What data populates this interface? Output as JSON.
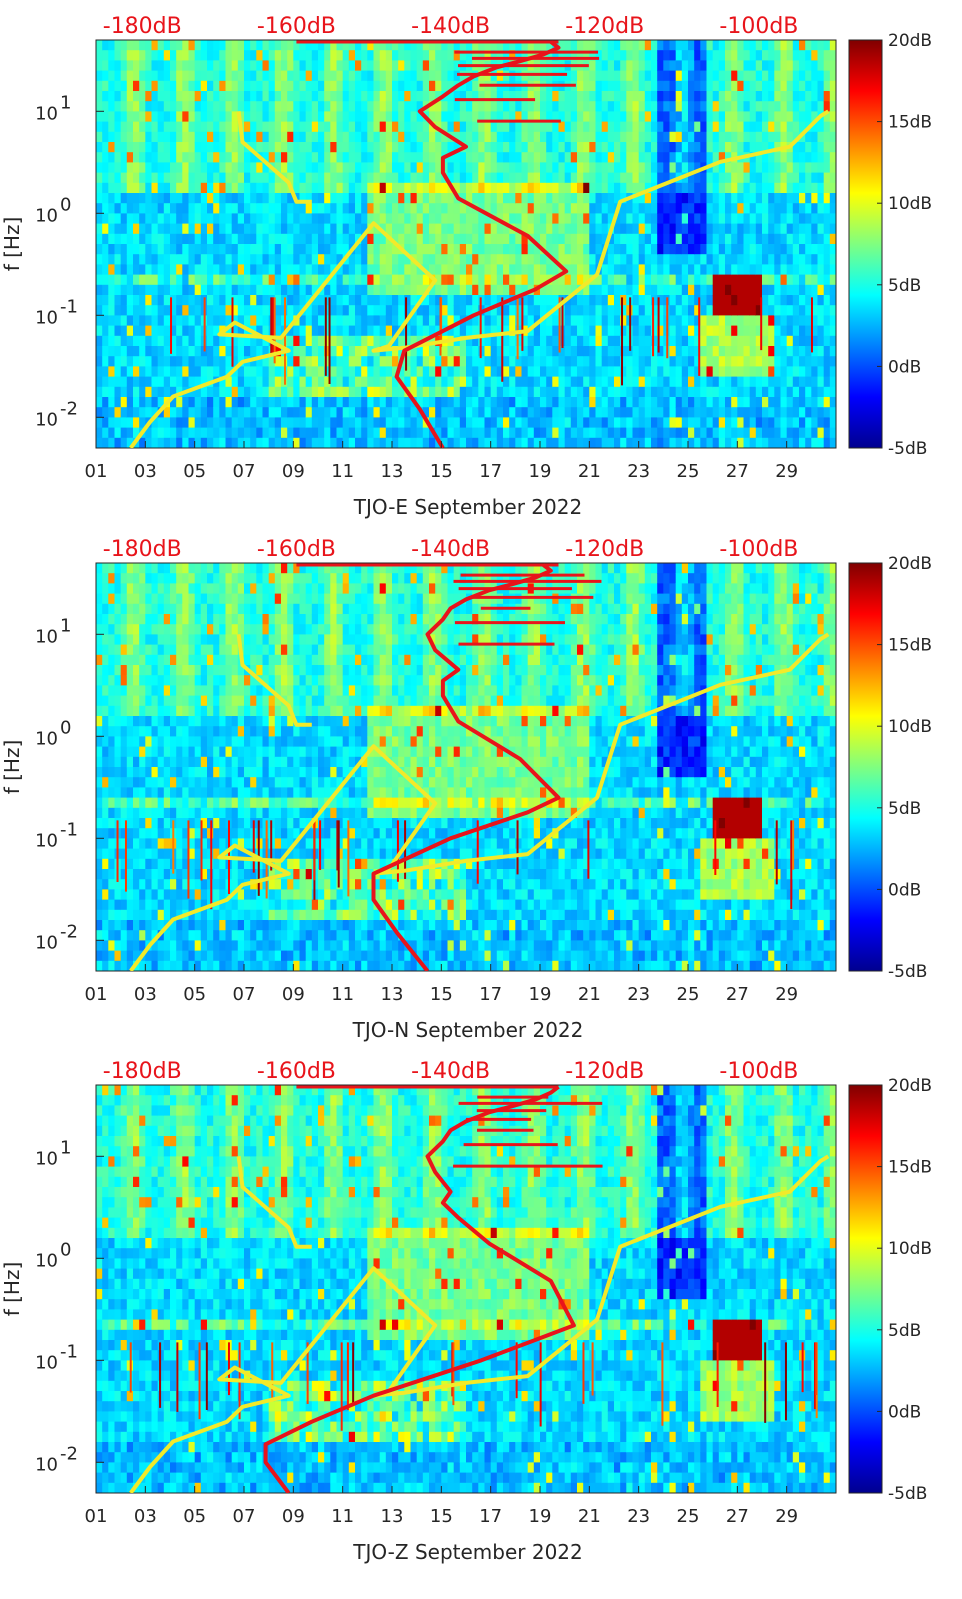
{
  "chart_data": [
    {
      "type": "heatmap",
      "title": "",
      "xlabel": "TJO-E September 2022",
      "ylabel": "f [Hz]",
      "x_ticks": [
        "01",
        "03",
        "05",
        "07",
        "09",
        "11",
        "13",
        "15",
        "17",
        "19",
        "21",
        "23",
        "25",
        "27",
        "29"
      ],
      "x_tick_values": [
        1,
        3,
        5,
        7,
        9,
        11,
        13,
        15,
        17,
        19,
        21,
        23,
        25,
        27,
        29
      ],
      "xlim": [
        1,
        31
      ],
      "y_scale": "log",
      "ylim": [
        0.005,
        50
      ],
      "y_ticks": [
        {
          "base": "10",
          "exp": "-2",
          "value": 0.01
        },
        {
          "base": "10",
          "exp": "-1",
          "value": 0.1
        },
        {
          "base": "10",
          "exp": "0",
          "value": 1
        },
        {
          "base": "10",
          "exp": "1",
          "value": 10
        }
      ],
      "top_axis_labels": [
        "-180dB",
        "-160dB",
        "-140dB",
        "-120dB",
        "-100dB"
      ],
      "top_axis_values": [
        -180,
        -160,
        -140,
        -120,
        -100
      ],
      "top_axis_range": [
        -186,
        -90
      ],
      "colorbar": {
        "labels": [
          "20dB",
          "15dB",
          "10dB",
          "5dB",
          "0dB",
          "-5dB"
        ],
        "values": [
          20,
          15,
          10,
          5,
          0,
          -5
        ],
        "range": [
          -5,
          20
        ],
        "colormap": "jet"
      },
      "series": [
        {
          "color": "#f2ea2a",
          "top_db": [
            -181.5,
            -179,
            -176,
            -169,
            -167,
            -161,
            -168,
            -170,
            -162,
            -150,
            -142,
            -148,
            -150,
            -146,
            -138,
            -130,
            -121,
            -118,
            -105,
            -96,
            -92,
            -91
          ],
          "freq_hz": [
            0.005,
            0.009,
            0.016,
            0.025,
            0.035,
            0.045,
            0.085,
            0.065,
            0.06,
            0.8,
            0.22,
            0.05,
            0.045,
            0.048,
            0.06,
            0.07,
            0.25,
            1.3,
            3.2,
            4.5,
            9,
            10
          ]
        },
        {
          "color": "#e8141b",
          "top_db": [
            -141,
            -144,
            -147,
            -146,
            -137,
            -129,
            -125,
            -130,
            -139,
            -141,
            -141,
            -138,
            -142,
            -144,
            -141,
            -139,
            -137,
            -134,
            -131,
            -128,
            -126,
            -127
          ],
          "freq_hz": [
            0.005,
            0.012,
            0.025,
            0.045,
            0.1,
            0.18,
            0.27,
            0.6,
            1.4,
            2.5,
            3.5,
            4.5,
            7,
            10,
            14,
            18,
            22,
            27,
            31,
            36,
            42,
            48
          ]
        },
        {
          "color": "#f2ea2a",
          "top_db": [
            -167.5,
            -167,
            -161,
            -160,
            -158
          ],
          "freq_hz": [
            10,
            5,
            2,
            1.3,
            1.3
          ]
        }
      ]
    },
    {
      "type": "heatmap",
      "title": "",
      "xlabel": "TJO-N September 2022",
      "ylabel": "f [Hz]",
      "x_ticks": [
        "01",
        "03",
        "05",
        "07",
        "09",
        "11",
        "13",
        "15",
        "17",
        "19",
        "21",
        "23",
        "25",
        "27",
        "29"
      ],
      "x_tick_values": [
        1,
        3,
        5,
        7,
        9,
        11,
        13,
        15,
        17,
        19,
        21,
        23,
        25,
        27,
        29
      ],
      "xlim": [
        1,
        31
      ],
      "y_scale": "log",
      "ylim": [
        0.005,
        50
      ],
      "y_ticks": [
        {
          "base": "10",
          "exp": "-2",
          "value": 0.01
        },
        {
          "base": "10",
          "exp": "-1",
          "value": 0.1
        },
        {
          "base": "10",
          "exp": "0",
          "value": 1
        },
        {
          "base": "10",
          "exp": "1",
          "value": 10
        }
      ],
      "top_axis_labels": [
        "-180dB",
        "-160dB",
        "-140dB",
        "-120dB",
        "-100dB"
      ],
      "top_axis_values": [
        -180,
        -160,
        -140,
        -120,
        -100
      ],
      "top_axis_range": [
        -186,
        -90
      ],
      "colorbar": {
        "labels": [
          "20dB",
          "15dB",
          "10dB",
          "5dB",
          "0dB",
          "-5dB"
        ],
        "values": [
          20,
          15,
          10,
          5,
          0,
          -5
        ],
        "range": [
          -5,
          20
        ],
        "colormap": "jet"
      },
      "series": [
        {
          "color": "#f2ea2a",
          "top_db": [
            -181.5,
            -179,
            -176,
            -169,
            -167,
            -161,
            -168,
            -170,
            -162,
            -150,
            -142,
            -148,
            -150,
            -146,
            -138,
            -130,
            -121,
            -118,
            -105,
            -96,
            -92,
            -91
          ],
          "freq_hz": [
            0.005,
            0.009,
            0.016,
            0.025,
            0.035,
            0.045,
            0.085,
            0.065,
            0.06,
            0.8,
            0.22,
            0.05,
            0.045,
            0.048,
            0.06,
            0.07,
            0.25,
            1.3,
            3.2,
            4.5,
            9,
            10
          ]
        },
        {
          "color": "#e8141b",
          "top_db": [
            -143,
            -147,
            -150,
            -150,
            -140,
            -130,
            -126,
            -131,
            -139,
            -141,
            -141,
            -139,
            -142,
            -143,
            -141,
            -140,
            -138,
            -135,
            -132,
            -129,
            -127,
            -128
          ],
          "freq_hz": [
            0.005,
            0.012,
            0.025,
            0.045,
            0.1,
            0.18,
            0.25,
            0.6,
            1.4,
            2.5,
            3.5,
            4.5,
            7,
            10,
            14,
            18,
            22,
            27,
            31,
            36,
            42,
            48
          ]
        },
        {
          "color": "#f2ea2a",
          "top_db": [
            -167.5,
            -167,
            -161,
            -160,
            -158
          ],
          "freq_hz": [
            10,
            5,
            2,
            1.3,
            1.3
          ]
        }
      ]
    },
    {
      "type": "heatmap",
      "title": "",
      "xlabel": "TJO-Z September 2022",
      "ylabel": "f [Hz]",
      "x_ticks": [
        "01",
        "03",
        "05",
        "07",
        "09",
        "11",
        "13",
        "15",
        "17",
        "19",
        "21",
        "23",
        "25",
        "27",
        "29"
      ],
      "x_tick_values": [
        1,
        3,
        5,
        7,
        9,
        11,
        13,
        15,
        17,
        19,
        21,
        23,
        25,
        27,
        29
      ],
      "xlim": [
        1,
        31
      ],
      "y_scale": "log",
      "ylim": [
        0.005,
        50
      ],
      "y_ticks": [
        {
          "base": "10",
          "exp": "-2",
          "value": 0.01
        },
        {
          "base": "10",
          "exp": "-1",
          "value": 0.1
        },
        {
          "base": "10",
          "exp": "0",
          "value": 1
        },
        {
          "base": "10",
          "exp": "1",
          "value": 10
        }
      ],
      "top_axis_labels": [
        "-180dB",
        "-160dB",
        "-140dB",
        "-120dB",
        "-100dB"
      ],
      "top_axis_values": [
        -180,
        -160,
        -140,
        -120,
        -100
      ],
      "top_axis_range": [
        -186,
        -90
      ],
      "colorbar": {
        "labels": [
          "20dB",
          "15dB",
          "10dB",
          "5dB",
          "0dB",
          "-5dB"
        ],
        "values": [
          20,
          15,
          10,
          5,
          0,
          -5
        ],
        "range": [
          -5,
          20
        ],
        "colormap": "jet"
      },
      "series": [
        {
          "color": "#f2ea2a",
          "top_db": [
            -181.5,
            -179,
            -176,
            -169,
            -167,
            -161,
            -168,
            -170,
            -162,
            -150,
            -142,
            -148,
            -150,
            -146,
            -138,
            -130,
            -121,
            -118,
            -105,
            -96,
            -92,
            -91
          ],
          "freq_hz": [
            0.005,
            0.009,
            0.016,
            0.025,
            0.035,
            0.045,
            0.085,
            0.065,
            0.06,
            0.8,
            0.22,
            0.05,
            0.045,
            0.048,
            0.06,
            0.07,
            0.25,
            1.3,
            3.2,
            4.5,
            9,
            10
          ]
        },
        {
          "color": "#e8141b",
          "top_db": [
            -161,
            -164,
            -164,
            -158,
            -150,
            -136,
            -124,
            -127,
            -135,
            -139,
            -141,
            -140,
            -142,
            -143,
            -141,
            -140,
            -138,
            -135,
            -132,
            -129,
            -127,
            -126
          ],
          "freq_hz": [
            0.005,
            0.01,
            0.015,
            0.025,
            0.045,
            0.1,
            0.22,
            0.6,
            1.4,
            2.5,
            3.5,
            4.5,
            7,
            10,
            14,
            18,
            22,
            27,
            31,
            36,
            42,
            48
          ]
        },
        {
          "color": "#f2ea2a",
          "top_db": [
            -167.5,
            -167,
            -161,
            -160,
            -158
          ],
          "freq_hz": [
            10,
            5,
            2,
            1.3,
            1.3
          ]
        }
      ]
    }
  ]
}
